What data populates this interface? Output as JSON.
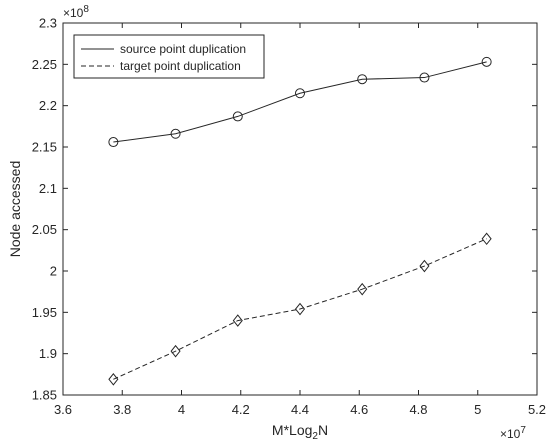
{
  "chart_data": {
    "type": "line",
    "xlabel": "M*Log",
    "xlabel_sub": "2",
    "xlabel_suffix": "N",
    "ylabel": "Node accessed",
    "x_exponent": {
      "base": "×10",
      "power": "7"
    },
    "y_exponent": {
      "base": "×10",
      "power": "8"
    },
    "xlim": [
      3.6,
      5.2
    ],
    "ylim": [
      1.85,
      2.3
    ],
    "x_ticks": [
      3.6,
      3.8,
      4,
      4.2,
      4.4,
      4.6,
      4.8,
      5,
      5.2
    ],
    "x_tick_labels": [
      "3.6",
      "3.8",
      "4",
      "4.2",
      "4.4",
      "4.6",
      "4.8",
      "5",
      "5.2"
    ],
    "y_ticks": [
      1.85,
      1.9,
      1.95,
      2,
      2.05,
      2.1,
      2.15,
      2.2,
      2.25,
      2.3
    ],
    "y_tick_labels": [
      "1.85",
      "1.9",
      "1.95",
      "2",
      "2.05",
      "2.1",
      "2.15",
      "2.2",
      "2.25",
      "2.3"
    ],
    "grid": false,
    "legend_position": "top-left",
    "series": [
      {
        "name": "source point duplication",
        "line_style": "solid",
        "marker": "circle",
        "x": [
          3.77,
          3.98,
          4.19,
          4.4,
          4.61,
          4.82,
          5.03
        ],
        "y": [
          2.156,
          2.166,
          2.187,
          2.215,
          2.232,
          2.234,
          2.253
        ]
      },
      {
        "name": "target point duplication",
        "line_style": "dashed",
        "marker": "diamond",
        "x": [
          3.77,
          3.98,
          4.19,
          4.4,
          4.61,
          4.82,
          5.03
        ],
        "y": [
          1.869,
          1.903,
          1.94,
          1.954,
          1.978,
          2.006,
          2.039
        ]
      }
    ]
  }
}
